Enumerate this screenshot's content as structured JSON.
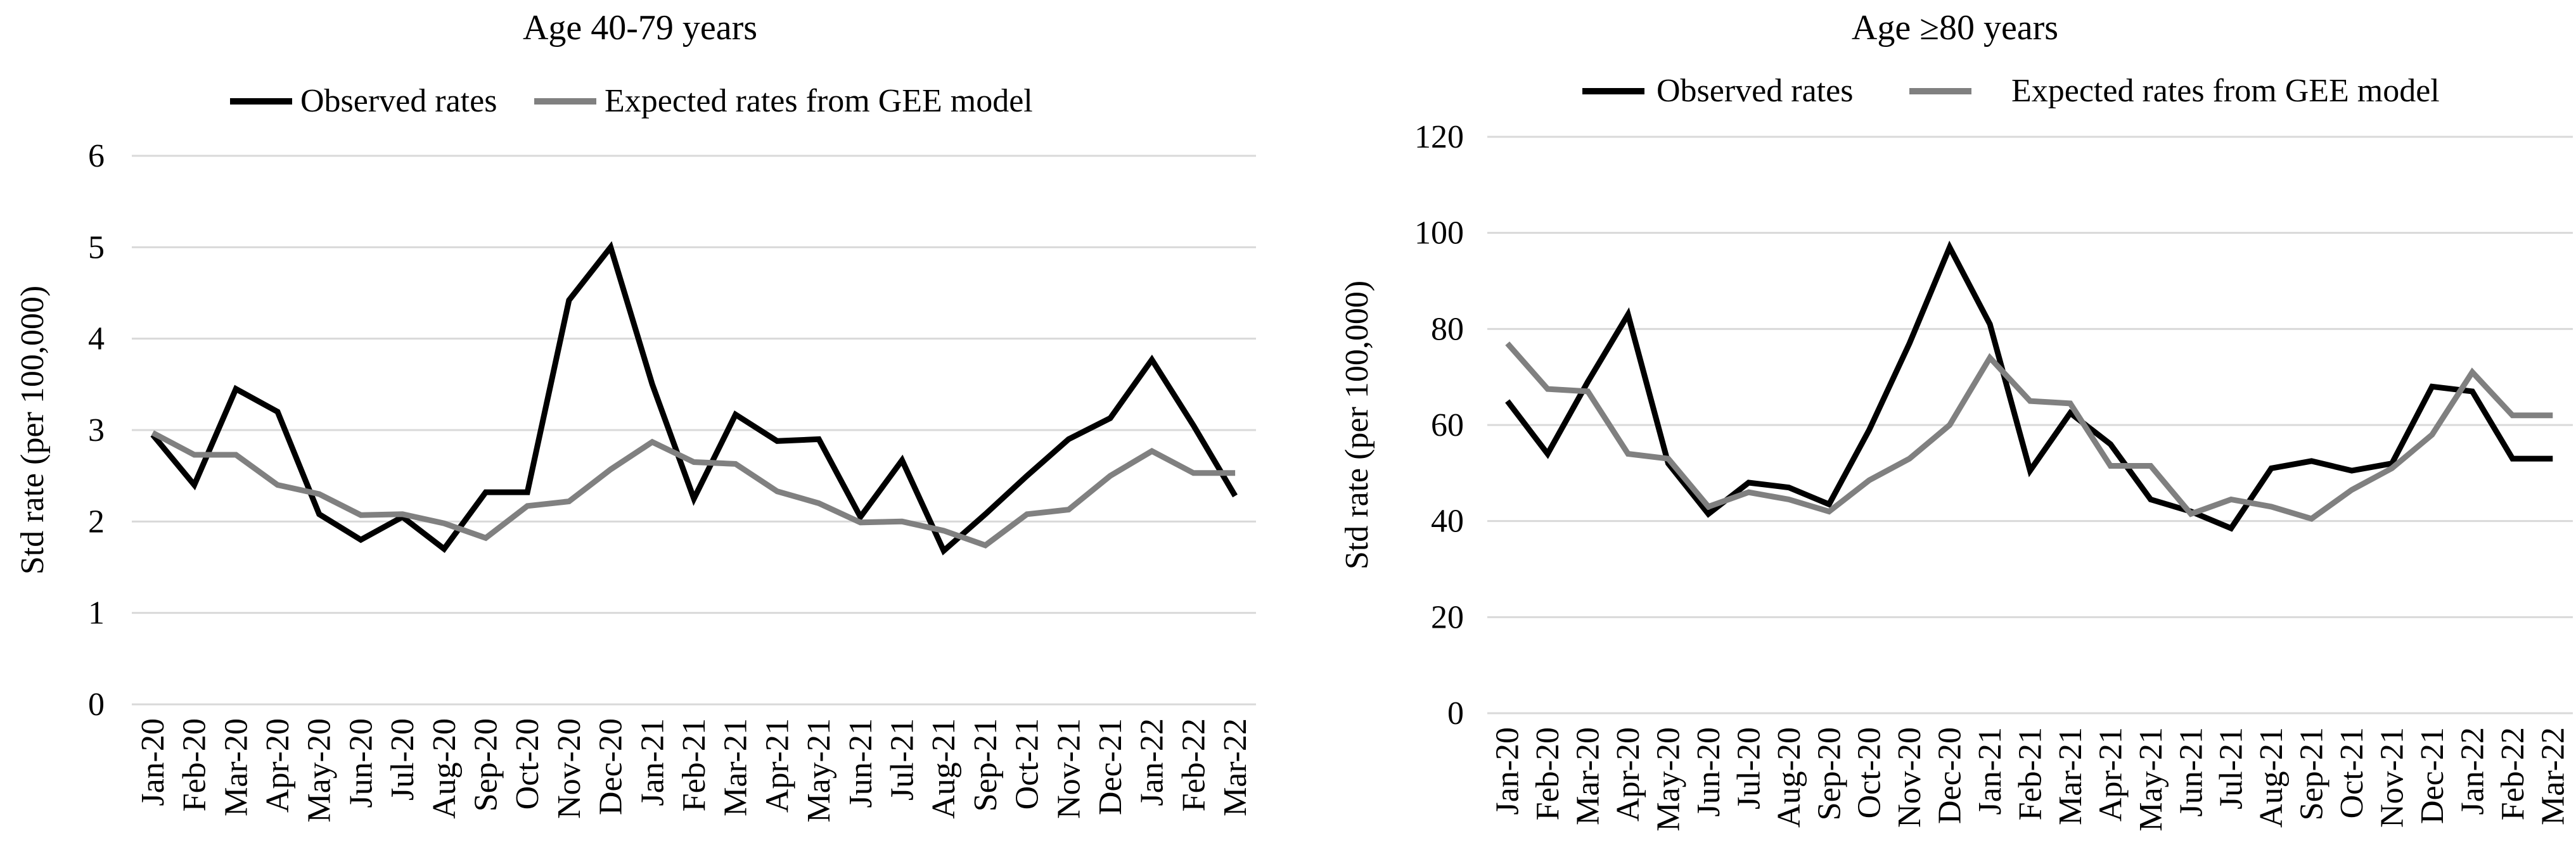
{
  "chart_data": [
    {
      "type": "line",
      "title": "Age 40-79 years",
      "xlabel": "",
      "ylabel": "Std rate (per 100,000)",
      "ylim": [
        0,
        6
      ],
      "yticks": [
        0,
        1,
        2,
        3,
        4,
        5,
        6
      ],
      "grid": true,
      "legend_position": "top",
      "categories": [
        "Jan-20",
        "Feb-20",
        "Mar-20",
        "Apr-20",
        "May-20",
        "Jun-20",
        "Jul-20",
        "Aug-20",
        "Sep-20",
        "Oct-20",
        "Nov-20",
        "Dec-20",
        "Jan-21",
        "Feb-21",
        "Mar-21",
        "Apr-21",
        "May-21",
        "Jun-21",
        "Jul-21",
        "Aug-21",
        "Sep-21",
        "Oct-21",
        "Nov-21",
        "Dec-21",
        "Jan-22",
        "Feb-22",
        "Mar-22"
      ],
      "series": [
        {
          "name": "Observed rates",
          "color": "#000000",
          "values": [
            2.95,
            2.4,
            3.45,
            3.2,
            2.08,
            1.8,
            2.05,
            1.7,
            2.32,
            2.32,
            4.42,
            5.0,
            3.5,
            2.25,
            3.17,
            2.88,
            2.9,
            2.05,
            2.67,
            1.68,
            2.08,
            2.5,
            2.9,
            3.13,
            3.77,
            3.05,
            2.28
          ]
        },
        {
          "name": "Expected rates from GEE model",
          "color": "#808080",
          "values": [
            2.97,
            2.73,
            2.73,
            2.4,
            2.3,
            2.07,
            2.08,
            1.98,
            1.82,
            2.17,
            2.22,
            2.57,
            2.87,
            2.65,
            2.63,
            2.33,
            2.2,
            1.99,
            2.0,
            1.9,
            1.74,
            2.08,
            2.13,
            2.5,
            2.77,
            2.53,
            2.53
          ]
        }
      ]
    },
    {
      "type": "line",
      "title": "Age ≥80 years",
      "xlabel": "",
      "ylabel": "Std rate (per 100,000)",
      "ylim": [
        0,
        120
      ],
      "yticks": [
        0,
        20,
        40,
        60,
        80,
        100,
        120
      ],
      "grid": true,
      "legend_position": "top",
      "categories": [
        "Jan-20",
        "Feb-20",
        "Mar-20",
        "Apr-20",
        "May-20",
        "Jun-20",
        "Jul-20",
        "Aug-20",
        "Sep-20",
        "Oct-20",
        "Nov-20",
        "Dec-20",
        "Jan-21",
        "Feb-21",
        "Mar-21",
        "Apr-21",
        "May-21",
        "Jun-21",
        "Jul-21",
        "Aug-21",
        "Sep-21",
        "Oct-21",
        "Nov-21",
        "Dec-21",
        "Jan-22",
        "Feb-22",
        "Mar-22"
      ],
      "series": [
        {
          "name": "Observed rates",
          "color": "#000000",
          "values": [
            65,
            54,
            69,
            83,
            52,
            41.5,
            48,
            47,
            43.5,
            59,
            77,
            97,
            81,
            50.5,
            62.5,
            56,
            44.5,
            42,
            38.5,
            51,
            52.5,
            50.5,
            52,
            68,
            67,
            53,
            53
          ]
        },
        {
          "name": "Expected rates from GEE model",
          "color": "#808080",
          "values": [
            77,
            67.5,
            67,
            54,
            53,
            43,
            46,
            44.5,
            42,
            48.5,
            53,
            60,
            74,
            65,
            64.5,
            51.5,
            51.5,
            41.5,
            44.5,
            43,
            40.5,
            46.5,
            51,
            58,
            71,
            62,
            62
          ]
        }
      ]
    }
  ]
}
